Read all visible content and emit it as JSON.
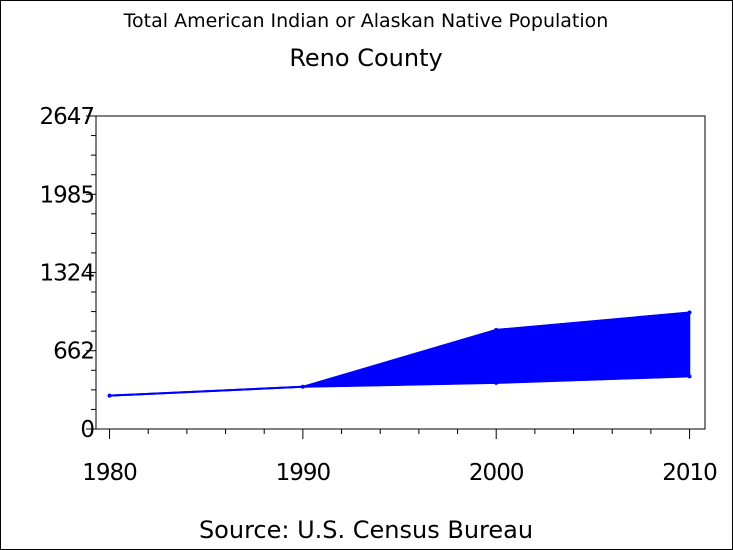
{
  "chart_data": {
    "type": "area",
    "title": "Total American Indian or Alaskan Native Population",
    "subtitle": "Reno County",
    "footnote": "Source: U.S. Census Bureau",
    "x": [
      1980,
      1990,
      2000,
      2010
    ],
    "x_tick_labels": [
      "1980",
      "1990",
      "2000",
      "2010"
    ],
    "xlim": [
      1979.3,
      2010.8
    ],
    "ylim": [
      0,
      2647
    ],
    "y_ticks": [
      0,
      662,
      1324,
      1985,
      2647
    ],
    "y_tick_labels": [
      "0",
      "662",
      "1324",
      "1985",
      "2647"
    ],
    "band": {
      "lower": [
        282,
        357,
        390,
        445
      ],
      "upper": [
        282,
        357,
        838,
        985
      ]
    },
    "grid": false,
    "colors": {
      "series": "#0000ff",
      "axis": "#000000"
    }
  }
}
